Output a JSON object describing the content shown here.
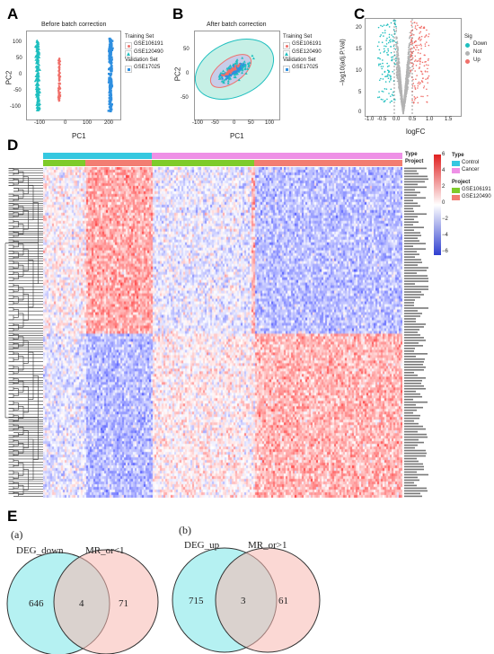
{
  "panels": {
    "A": "A",
    "B": "B",
    "C": "C",
    "D": "D",
    "E": "E"
  },
  "colors": {
    "teal": "#1fbfbf",
    "salmon": "#f0706a",
    "blue": "#2e8fe0",
    "grey": "#b3b3b3",
    "heat_low": "#2f3fd0",
    "heat_mid": "#ffffff",
    "heat_high": "#e02020",
    "type_control": "#35c8e0",
    "type_cancer": "#ee90e6",
    "proj_a": "#7ecb2a",
    "proj_b": "#f27d72",
    "venn_left": "#a8eef0",
    "venn_right": "#f7b8b0"
  },
  "panel_a": {
    "title": "Before batch correction",
    "xlabel": "PC1",
    "ylabel": "PC2",
    "xticks": [
      "-100",
      "0",
      "100",
      "200"
    ],
    "yticks": [
      "100",
      "50",
      "0",
      "-50",
      "-100"
    ],
    "legend": {
      "training_title": "Training Set",
      "validation_title": "Validation Set",
      "items": [
        "GSE106191",
        "GSE120490",
        "GSE17025"
      ]
    }
  },
  "panel_b": {
    "title": "After batch correction",
    "xlabel": "PC1",
    "ylabel": "PC2",
    "xticks": [
      "-100",
      "-50",
      "0",
      "50",
      "100"
    ],
    "yticks": [
      "50",
      "0",
      "-50"
    ],
    "legend": {
      "training_title": "Training Set",
      "validation_title": "Validation Set",
      "items": [
        "GSE106191",
        "GSE120490",
        "GSE17025"
      ]
    }
  },
  "panel_c": {
    "xlabel": "logFC",
    "ylabel": "−log10(adj.P.Val)",
    "xticks": [
      "-1.0",
      "-0.5",
      "0.0",
      "0.5",
      "1.0",
      "1.5"
    ],
    "yticks": [
      "20",
      "15",
      "10",
      "5",
      "0"
    ],
    "legend_title": "Sig",
    "legend_items": [
      "Down",
      "Not",
      "Up"
    ]
  },
  "panel_d": {
    "legend_type_title": "Type",
    "type_items": [
      "Control",
      "Cancer"
    ],
    "legend_project_title": "Project",
    "project_items": [
      "GSE106191",
      "GSE120490"
    ],
    "annotation_labels": [
      "Type",
      "Project"
    ],
    "scale_ticks": [
      "6",
      "4",
      "2",
      "0",
      "−2",
      "−4",
      "−6"
    ]
  },
  "panel_e": {
    "sub_a": "(a)",
    "sub_b": "(b)",
    "venn_a": {
      "left_label": "DEG_down",
      "right_label": "MR_or<1",
      "left_only": "646",
      "overlap": "4",
      "right_only": "71"
    },
    "venn_b": {
      "left_label": "DEG_up",
      "right_label": "MR_or>1",
      "left_only": "715",
      "overlap": "3",
      "right_only": "61"
    }
  }
}
